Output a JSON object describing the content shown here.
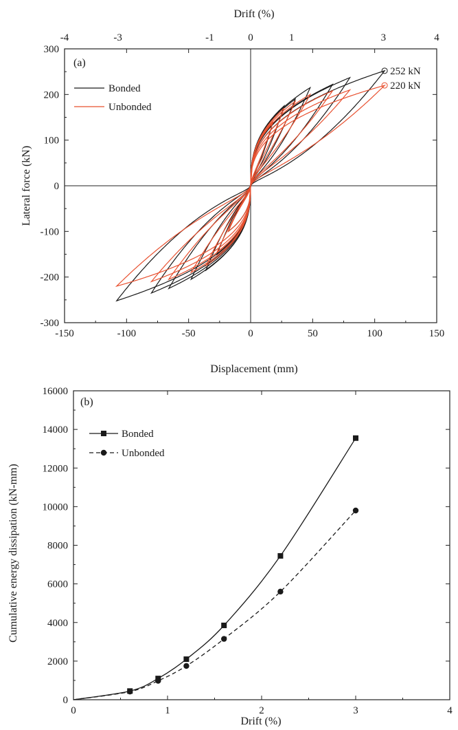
{
  "chart_data": [
    {
      "type": "line",
      "panel_label": "(a)",
      "xlabel": "Displacement (mm)",
      "top_xlabel": "Drift (%)",
      "ylabel": "Lateral force (kN)",
      "xlim": [
        -150,
        150
      ],
      "ylim": [
        -300,
        300
      ],
      "x_ticks": [
        -150,
        -100,
        -50,
        0,
        50,
        100,
        150
      ],
      "x_tick_labels": [
        "-150",
        "-100",
        "-50",
        "0",
        "50",
        "100",
        "150"
      ],
      "y_ticks": [
        -300,
        -200,
        -100,
        0,
        100,
        200,
        300
      ],
      "y_tick_labels": [
        "-300",
        "-200",
        "-100",
        "0",
        "100",
        "200",
        "300"
      ],
      "top_x_ticks": [
        -4,
        -3,
        -1,
        0,
        1,
        3,
        4
      ],
      "top_x_tick_displacements": [
        -150,
        -107,
        -33,
        0,
        33,
        107,
        150
      ],
      "top_x_tick_labels": [
        "-4",
        "-3",
        "-1",
        "0",
        "1",
        "3",
        "4"
      ],
      "legend": "top-left",
      "series": [
        {
          "name": "Bonded",
          "color": "#1a1a1a",
          "cycles": [
            {
              "amp": 18,
              "peak": 140,
              "neg_peak": -100,
              "pinch": 0.55
            },
            {
              "amp": 27,
              "peak": 175,
              "neg_peak": -150,
              "pinch": 0.6
            },
            {
              "amp": 36,
              "peak": 190,
              "neg_peak": -185,
              "pinch": 0.6
            },
            {
              "amp": 48,
              "peak": 215,
              "neg_peak": -205,
              "pinch": 0.65
            },
            {
              "amp": 66,
              "peak": 222,
              "neg_peak": -225,
              "pinch": 0.65
            },
            {
              "amp": 80,
              "peak": 237,
              "neg_peak": -235,
              "pinch": 0.7
            },
            {
              "amp": 108,
              "peak": 252,
              "neg_peak": -252,
              "pinch": 0.75
            }
          ]
        },
        {
          "name": "Unbonded",
          "color": "#e8502f",
          "cycles": [
            {
              "amp": 18,
              "peak": 140,
              "neg_peak": -100,
              "pinch": 0.45
            },
            {
              "amp": 27,
              "peak": 170,
              "neg_peak": -145,
              "pinch": 0.45
            },
            {
              "amp": 36,
              "peak": 185,
              "neg_peak": -175,
              "pinch": 0.5
            },
            {
              "amp": 48,
              "peak": 200,
              "neg_peak": -190,
              "pinch": 0.5
            },
            {
              "amp": 66,
              "peak": 208,
              "neg_peak": -205,
              "pinch": 0.55
            },
            {
              "amp": 80,
              "peak": 210,
              "neg_peak": -210,
              "pinch": 0.55
            },
            {
              "amp": 108,
              "peak": 220,
              "neg_peak": -220,
              "pinch": 0.6
            }
          ]
        }
      ],
      "annotations": [
        {
          "text": "252 kN",
          "x": 108,
          "y": 252,
          "color": "#1a1a1a"
        },
        {
          "text": "220 kN",
          "x": 108,
          "y": 220,
          "color": "#e8502f"
        }
      ]
    },
    {
      "type": "line",
      "panel_label": "(b)",
      "xlabel": "Drift (%)",
      "ylabel": "Cumulative energy dissipation (kN-mm)",
      "xlim": [
        0,
        4
      ],
      "ylim": [
        0,
        16000
      ],
      "x_ticks": [
        0,
        1,
        2,
        3,
        4
      ],
      "x_tick_labels": [
        "0",
        "1",
        "2",
        "3",
        "4"
      ],
      "y_ticks": [
        0,
        2000,
        4000,
        6000,
        8000,
        10000,
        12000,
        14000,
        16000
      ],
      "y_tick_labels": [
        "0",
        "2000",
        "4000",
        "6000",
        "8000",
        "10000",
        "12000",
        "14000",
        "16000"
      ],
      "legend": "top-left",
      "series": [
        {
          "name": "Bonded",
          "color": "#1a1a1a",
          "marker": "square",
          "dash": false,
          "x": [
            0,
            0.6,
            0.9,
            1.2,
            1.6,
            2.2,
            3.0
          ],
          "y": [
            0,
            450,
            1100,
            2100,
            3850,
            7450,
            13550
          ]
        },
        {
          "name": "Unbonded",
          "color": "#1a1a1a",
          "marker": "circle",
          "dash": true,
          "x": [
            0,
            0.6,
            0.9,
            1.2,
            1.6,
            2.2,
            3.0
          ],
          "y": [
            0,
            420,
            980,
            1750,
            3150,
            5600,
            9800
          ]
        }
      ]
    }
  ]
}
